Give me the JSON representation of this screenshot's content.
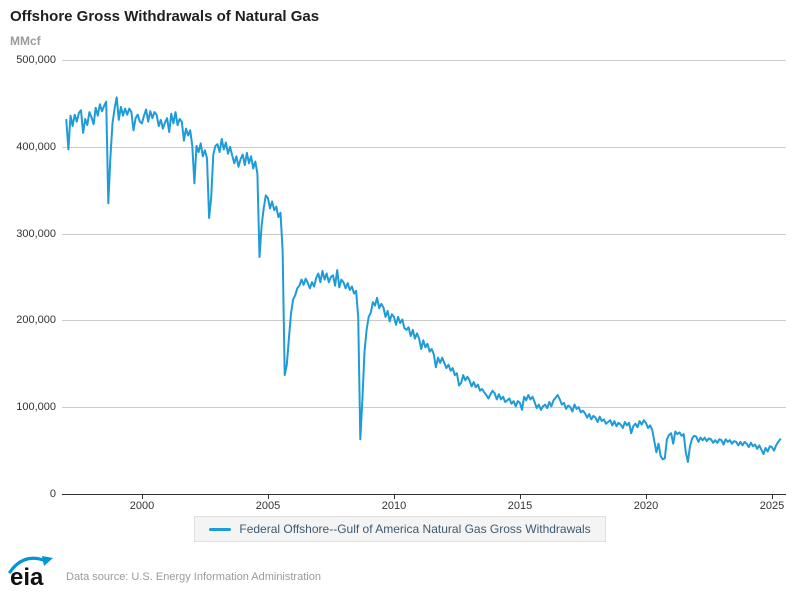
{
  "header": {
    "title": "Offshore Gross Withdrawals of Natural Gas",
    "unit": "MMcf"
  },
  "legend": {
    "label": "Federal Offshore--Gulf of America Natural Gas Gross Withdrawals"
  },
  "footer": {
    "logo_text": "eia",
    "source": "Data source: U.S. Energy Information Administration",
    "logo_blue": "#0096d7"
  },
  "chart_data": {
    "type": "line",
    "title": "Offshore Gross Withdrawals of Natural Gas",
    "ylabel": "MMcf",
    "xlabel": "",
    "frequency": "monthly",
    "x_start": "1997-01",
    "x_end": "2025-05",
    "xlim": [
      1996.83,
      2025.56
    ],
    "ylim": [
      0,
      500000
    ],
    "grid": "horizontal",
    "legend_position": "bottom",
    "y_ticks": [
      {
        "value": 0,
        "label": "0"
      },
      {
        "value": 100000,
        "label": "100,000"
      },
      {
        "value": 200000,
        "label": "200,000"
      },
      {
        "value": 300000,
        "label": "300,000"
      },
      {
        "value": 400000,
        "label": "400,000"
      },
      {
        "value": 500000,
        "label": "500,000"
      }
    ],
    "x_ticks": [
      {
        "value": 2000,
        "label": "2000"
      },
      {
        "value": 2005,
        "label": "2005"
      },
      {
        "value": 2010,
        "label": "2010"
      },
      {
        "value": 2015,
        "label": "2015"
      },
      {
        "value": 2020,
        "label": "2020"
      },
      {
        "value": 2025,
        "label": "2025"
      }
    ],
    "series": [
      {
        "name": "Federal Offshore--Gulf of America Natural Gas Gross Withdrawals",
        "color": "#1f9bd7",
        "start_year": 1997,
        "values": [
          431000,
          397000,
          436000,
          424000,
          437000,
          429000,
          439000,
          442000,
          416000,
          432000,
          425000,
          440000,
          434000,
          426000,
          445000,
          436000,
          449000,
          441000,
          447000,
          452000,
          335000,
          388000,
          427000,
          444000,
          457000,
          431000,
          446000,
          436000,
          444000,
          437000,
          444000,
          440000,
          419000,
          433000,
          437000,
          429000,
          427000,
          436000,
          443000,
          429000,
          441000,
          433000,
          440000,
          437000,
          424000,
          431000,
          421000,
          428000,
          433000,
          417000,
          438000,
          427000,
          440000,
          425000,
          432000,
          429000,
          407000,
          421000,
          413000,
          419000,
          401000,
          358000,
          401000,
          394000,
          404000,
          389000,
          396000,
          387000,
          318000,
          342000,
          391000,
          401000,
          403000,
          394000,
          409000,
          397000,
          405000,
          392000,
          400000,
          390000,
          381000,
          389000,
          377000,
          386000,
          391000,
          379000,
          393000,
          381000,
          389000,
          375000,
          383000,
          369000,
          273000,
          309000,
          329000,
          344000,
          341000,
          329000,
          337000,
          327000,
          331000,
          319000,
          324000,
          281000,
          137000,
          149000,
          179000,
          208000,
          224000,
          229000,
          237000,
          240000,
          247000,
          241000,
          248000,
          243000,
          237000,
          244000,
          239000,
          249000,
          254000,
          244000,
          257000,
          247000,
          254000,
          244000,
          250000,
          252000,
          240000,
          258000,
          238000,
          247000,
          244000,
          237000,
          243000,
          235000,
          239000,
          231000,
          234000,
          204000,
          63000,
          109000,
          164000,
          189000,
          204000,
          209000,
          221000,
          217000,
          226000,
          214000,
          219000,
          215000,
          204000,
          211000,
          199000,
          207000,
          204000,
          195000,
          204000,
          197000,
          201000,
          191000,
          189000,
          192000,
          182000,
          189000,
          179000,
          185000,
          179000,
          167000,
          177000,
          169000,
          173000,
          164000,
          167000,
          161000,
          146000,
          157000,
          151000,
          157000,
          151000,
          145000,
          149000,
          142000,
          145000,
          137000,
          139000,
          125000,
          128000,
          137000,
          131000,
          135000,
          131000,
          124000,
          129000,
          123000,
          126000,
          119000,
          121000,
          117000,
          114000,
          110000,
          115000,
          119000,
          116000,
          109000,
          115000,
          109000,
          112000,
          106000,
          108000,
          110000,
          104000,
          107000,
          101000,
          107000,
          105000,
          97000,
          112000,
          108000,
          114000,
          109000,
          112000,
          106000,
          99000,
          103000,
          97000,
          101000,
          103000,
          99000,
          106000,
          101000,
          108000,
          111000,
          114000,
          109000,
          103000,
          105000,
          98000,
          102000,
          100000,
          95000,
          103000,
          98000,
          100000,
          94000,
          96000,
          93000,
          88000,
          92000,
          86000,
          90000,
          88000,
          83000,
          89000,
          84000,
          86000,
          81000,
          83000,
          85000,
          79000,
          84000,
          78000,
          82000,
          80000,
          76000,
          83000,
          79000,
          82000,
          70000,
          78000,
          81000,
          77000,
          84000,
          80000,
          85000,
          82000,
          76000,
          79000,
          74000,
          61000,
          48000,
          58000,
          44000,
          40000,
          41000,
          63000,
          68000,
          70000,
          58000,
          72000,
          69000,
          71000,
          67000,
          69000,
          48000,
          37000,
          55000,
          64000,
          67000,
          66000,
          60000,
          65000,
          62000,
          65000,
          61000,
          64000,
          63000,
          59000,
          62000,
          59000,
          63000,
          62000,
          57000,
          63000,
          60000,
          62000,
          58000,
          61000,
          60000,
          56000,
          60000,
          56000,
          60000,
          58000,
          54000,
          59000,
          55000,
          57000,
          52000,
          56000,
          51000,
          46000,
          53000,
          49000,
          55000,
          54000,
          50000,
          56000,
          60000,
          63000
        ]
      }
    ]
  }
}
